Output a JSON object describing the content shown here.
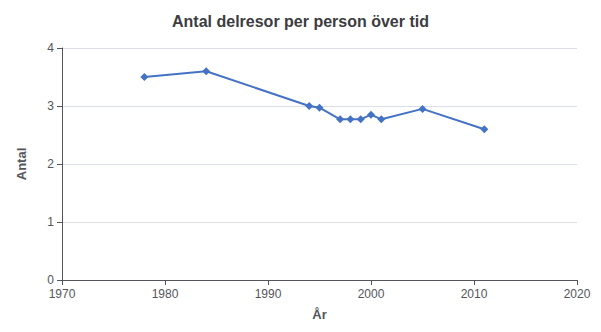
{
  "chart_data": {
    "type": "line",
    "title": "Antal delresor per person över tid",
    "xlabel": "År",
    "ylabel": "Antal",
    "x": [
      1978,
      1984,
      1994,
      1995,
      1997,
      1998,
      1999,
      2000,
      2001,
      2005,
      2011
    ],
    "values": [
      3.5,
      3.6,
      3.0,
      2.97,
      2.77,
      2.77,
      2.77,
      2.85,
      2.77,
      2.95,
      2.6
    ],
    "xlim": [
      1970,
      2020
    ],
    "ylim": [
      0,
      4
    ],
    "xticks": [
      1970,
      1980,
      1990,
      2000,
      2010,
      2020
    ],
    "yticks": [
      0,
      1,
      2,
      3,
      4
    ],
    "color": "#4472C4",
    "marker": "diamond",
    "grid": true
  }
}
